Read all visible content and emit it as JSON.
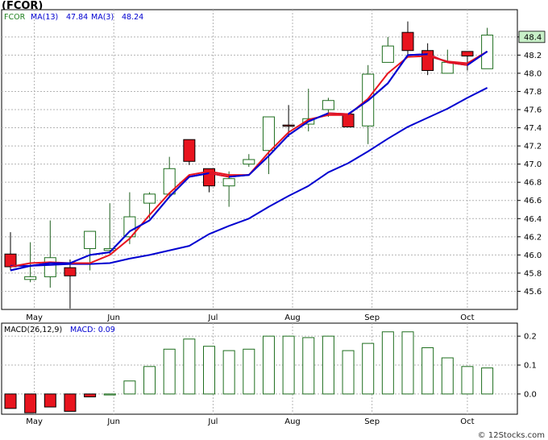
{
  "header": {
    "title": "(FCOR)"
  },
  "credit": "© 12Stocks.com",
  "colors": {
    "up": "#ffffff",
    "down": "#e8141e",
    "ma_fast": "#e8141e",
    "ma13": "#0000d0",
    "ma3": "#0000d0",
    "macd_bar": "#1e6e1e",
    "grid": "#b4b4b4",
    "last_price_bg": "#c8f0c8"
  },
  "chart_data": [
    {
      "type": "candlestick",
      "title": "",
      "legend": [
        {
          "label": "FCOR",
          "color": "#208020"
        },
        {
          "label": "MA(13)",
          "value": "47.84",
          "color": "#0000d0"
        },
        {
          "label": "MA(3)",
          "value": "48.24",
          "color": "#0000d0"
        }
      ],
      "ylim": [
        45.4,
        48.7
      ],
      "yticks": [
        45.6,
        45.8,
        46.0,
        46.2,
        46.4,
        46.6,
        46.8,
        47.0,
        47.2,
        47.4,
        47.6,
        47.8,
        48.0,
        48.2,
        48.4
      ],
      "ytick_labels": [
        "45.6",
        "45.8",
        "46.0",
        "46.2",
        "46.4",
        "46.6",
        "46.8",
        "47.0",
        "47.2",
        "47.4",
        "47.6",
        "47.8",
        "48.0",
        "48.2",
        "48.4"
      ],
      "last_price": "48.4",
      "xticks": [
        {
          "label": "May",
          "index": 1.2
        },
        {
          "label": "Jun",
          "index": 5.2
        },
        {
          "label": "Jul",
          "index": 10.2
        },
        {
          "label": "Aug",
          "index": 14.2
        },
        {
          "label": "Sep",
          "index": 18.2
        },
        {
          "label": "Oct",
          "index": 23
        }
      ],
      "candles": [
        {
          "o": 46.01,
          "h": 46.25,
          "l": 45.83,
          "c": 45.87
        },
        {
          "o": 45.73,
          "h": 46.14,
          "l": 45.7,
          "c": 45.76
        },
        {
          "o": 45.76,
          "h": 46.38,
          "l": 45.64,
          "c": 45.97
        },
        {
          "o": 45.86,
          "h": 45.95,
          "l": 45.41,
          "c": 45.77
        },
        {
          "o": 46.07,
          "h": 46.25,
          "l": 45.83,
          "c": 46.26
        },
        {
          "o": 46.05,
          "h": 46.57,
          "l": 46.01,
          "c": 46.07
        },
        {
          "o": 46.2,
          "h": 46.69,
          "l": 46.12,
          "c": 46.42
        },
        {
          "o": 46.57,
          "h": 46.69,
          "l": 46.4,
          "c": 46.67
        },
        {
          "o": 46.67,
          "h": 47.08,
          "l": 46.63,
          "c": 46.95
        },
        {
          "o": 47.27,
          "h": 47.27,
          "l": 46.99,
          "c": 47.03
        },
        {
          "o": 46.95,
          "h": 46.95,
          "l": 46.69,
          "c": 46.76
        },
        {
          "o": 46.76,
          "h": 46.92,
          "l": 46.53,
          "c": 46.84
        },
        {
          "o": 47.0,
          "h": 47.11,
          "l": 46.97,
          "c": 47.05
        },
        {
          "o": 47.15,
          "h": 47.52,
          "l": 46.89,
          "c": 47.52
        },
        {
          "o": 47.43,
          "h": 47.65,
          "l": 47.3,
          "c": 47.42
        },
        {
          "o": 47.44,
          "h": 47.83,
          "l": 47.36,
          "c": 47.5
        },
        {
          "o": 47.6,
          "h": 47.73,
          "l": 47.52,
          "c": 47.7
        },
        {
          "o": 47.55,
          "h": 47.55,
          "l": 47.41,
          "c": 47.41
        },
        {
          "o": 47.42,
          "h": 48.09,
          "l": 47.22,
          "c": 47.99
        },
        {
          "o": 48.12,
          "h": 48.4,
          "l": 48.12,
          "c": 48.3
        },
        {
          "o": 48.45,
          "h": 48.57,
          "l": 48.18,
          "c": 48.25
        },
        {
          "o": 48.25,
          "h": 48.33,
          "l": 47.98,
          "c": 48.03
        },
        {
          "o": 48.0,
          "h": 48.26,
          "l": 48.0,
          "c": 48.12
        },
        {
          "o": 48.24,
          "h": 48.24,
          "l": 48.03,
          "c": 48.19
        },
        {
          "o": 48.05,
          "h": 48.5,
          "l": 48.05,
          "c": 48.42
        }
      ],
      "series": [
        {
          "role": "ma_fast",
          "values": [
            45.87,
            45.91,
            45.92,
            45.91,
            45.91,
            46.0,
            46.18,
            46.44,
            46.68,
            46.88,
            46.92,
            46.88,
            46.88,
            47.13,
            47.35,
            47.49,
            47.54,
            47.54,
            47.72,
            48.0,
            48.18,
            48.19,
            48.13,
            48.11,
            48.24
          ]
        },
        {
          "role": "ma3",
          "values": [
            45.83,
            45.88,
            45.91,
            45.91,
            46.0,
            46.03,
            46.26,
            46.38,
            46.64,
            46.86,
            46.9,
            46.86,
            46.88,
            47.09,
            47.32,
            47.47,
            47.56,
            47.55,
            47.7,
            47.89,
            48.2,
            48.21,
            48.12,
            48.09,
            48.24
          ]
        },
        {
          "role": "ma13",
          "values": [
            45.88,
            45.88,
            45.89,
            45.9,
            45.9,
            45.91,
            45.96,
            46.0,
            46.05,
            46.1,
            46.23,
            46.32,
            46.4,
            46.53,
            46.65,
            46.76,
            46.91,
            47.01,
            47.14,
            47.28,
            47.41,
            47.51,
            47.61,
            47.73,
            47.84
          ]
        }
      ]
    },
    {
      "type": "bar",
      "title": "",
      "legend": [
        {
          "label": "MACD(26,12,9)",
          "color": "#000000"
        },
        {
          "label": "MACD: 0.09",
          "color": "#0000d0"
        }
      ],
      "ylim": [
        -0.07,
        0.245
      ],
      "yticks": [
        0.0,
        0.1,
        0.2
      ],
      "ytick_labels": [
        "0.0",
        "0.1",
        "0.2"
      ],
      "xticks": [
        {
          "label": "May",
          "index": 1.2
        },
        {
          "label": "Jun",
          "index": 5.2
        },
        {
          "label": "Jul",
          "index": 10.2
        },
        {
          "label": "Aug",
          "index": 14.2
        },
        {
          "label": "Sep",
          "index": 18.2
        },
        {
          "label": "Oct",
          "index": 23
        }
      ],
      "values": [
        -0.05,
        -0.065,
        -0.045,
        -0.06,
        -0.01,
        0.0,
        0.045,
        0.095,
        0.155,
        0.19,
        0.165,
        0.15,
        0.155,
        0.2,
        0.2,
        0.195,
        0.2,
        0.15,
        0.175,
        0.215,
        0.215,
        0.16,
        0.125,
        0.095,
        0.09
      ]
    }
  ]
}
